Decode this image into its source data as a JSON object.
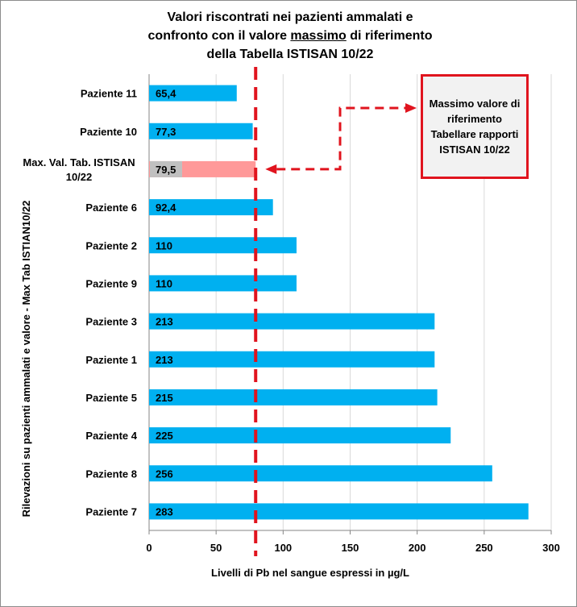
{
  "title": {
    "line1": "Valori riscontrati nei pazienti ammalati e",
    "line2_pre": "confronto con il valore ",
    "line2_underlined": "massimo",
    "line2_post": " di riferimento",
    "line3": "della Tabella ISTISAN 10/22"
  },
  "annotation": "Massimo valore di riferimento Tabellare rapporti ISTISAN 10/22",
  "colors": {
    "patient_bar": "#00b0f0",
    "reference_bar": "#ff9999",
    "reference_label_bg": "#c0c0c0",
    "reference_line": "#e0141e",
    "grid": "#d9d9d9"
  },
  "chart_data": {
    "type": "bar",
    "orientation": "horizontal",
    "xlabel": "Livelli di Pb nel sangue espressi in µg/L",
    "ylabel": "Rilevazioni su pazienti ammalati e valore - Max Tab ISTIAN10/22",
    "xlim": [
      0,
      300
    ],
    "xticks": [
      "0",
      "50",
      "100",
      "150",
      "200",
      "250",
      "300"
    ],
    "grid": "vertical",
    "reference_line": 79.5,
    "categories": [
      "Paziente 11",
      "Paziente 10",
      "Max. Val. Tab. ISTISAN 10/22",
      "Paziente 6",
      "Paziente 2",
      "Paziente 9",
      "Paziente 3",
      "Paziente 1",
      "Paziente 5",
      "Paziente 4",
      "Paziente 8",
      "Paziente 7"
    ],
    "values": [
      65.4,
      77.3,
      79.5,
      92.4,
      110,
      110,
      213,
      213,
      215,
      225,
      256,
      283
    ],
    "data_labels": [
      "65,4",
      "77,3",
      "79,5",
      "92,4",
      "110",
      "110",
      "213",
      "213",
      "215",
      "225",
      "256",
      "283"
    ],
    "highlight_index": 2
  }
}
